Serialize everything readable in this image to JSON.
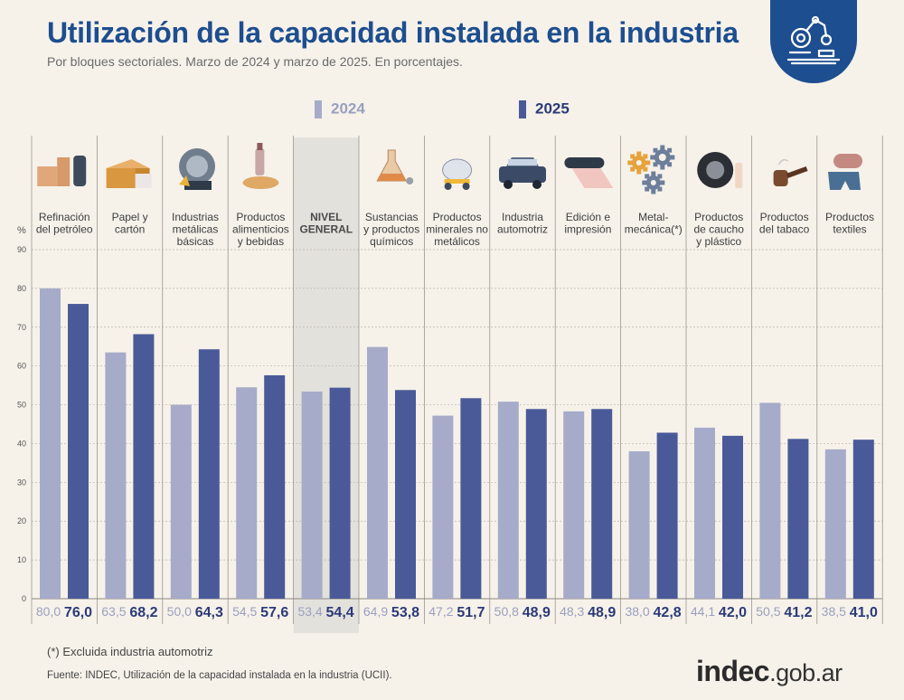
{
  "title": "Utilización de la capacidad instalada en la industria",
  "subtitle": "Por bloques sectoriales. Marzo de 2024 y marzo de 2025. En porcentajes.",
  "legend": [
    {
      "label": "2024",
      "color": "#a6abc9"
    },
    {
      "label": "2025",
      "color": "#4a5a98"
    }
  ],
  "colors": {
    "title": "#1d4e8f",
    "bar_2024": "#a6abc9",
    "bar_2025": "#4a5a98",
    "label_2024": "#9a9fbf",
    "label_2025": "#2b3a78",
    "highlight": "#e3e1dc",
    "logo": "#1d4e8f"
  },
  "chart_data": {
    "type": "bar",
    "y_unit_label": "%",
    "ylim": [
      0,
      90
    ],
    "y_ticks": [
      0,
      10,
      20,
      30,
      40,
      50,
      60,
      70,
      80,
      90
    ],
    "grid": true,
    "series_names": [
      "2024",
      "2025"
    ],
    "categories": [
      {
        "lines": [
          "Refinación",
          "del petróleo"
        ],
        "icon": "oil-refinery-icon",
        "v2024": 80.0,
        "v2025": 76.0,
        "l2024": "80,0",
        "l2025": "76,0",
        "highlight": false
      },
      {
        "lines": [
          "Papel y",
          "cartón"
        ],
        "icon": "cardboard-box-icon",
        "v2024": 63.5,
        "v2025": 68.2,
        "l2024": "63,5",
        "l2025": "68,2",
        "highlight": false
      },
      {
        "lines": [
          "Industrias",
          "metálicas",
          "básicas"
        ],
        "icon": "metal-cutting-icon",
        "v2024": 50.0,
        "v2025": 64.3,
        "l2024": "50,0",
        "l2025": "64,3",
        "highlight": false
      },
      {
        "lines": [
          "Productos",
          "alimenticios",
          "y bebidas"
        ],
        "icon": "food-beverage-icon",
        "v2024": 54.5,
        "v2025": 57.6,
        "l2024": "54,5",
        "l2025": "57,6",
        "highlight": false
      },
      {
        "lines": [
          "NIVEL",
          "GENERAL"
        ],
        "icon": "",
        "v2024": 53.4,
        "v2025": 54.4,
        "l2024": "53,4",
        "l2025": "54,4",
        "highlight": true
      },
      {
        "lines": [
          "Sustancias",
          "y productos",
          "químicos"
        ],
        "icon": "chemical-flask-icon",
        "v2024": 64.9,
        "v2025": 53.8,
        "l2024": "64,9",
        "l2025": "53,8",
        "highlight": false
      },
      {
        "lines": [
          "Productos",
          "minerales no",
          "metálicos"
        ],
        "icon": "cement-mixer-icon",
        "v2024": 47.2,
        "v2025": 51.7,
        "l2024": "47,2",
        "l2025": "51,7",
        "highlight": false
      },
      {
        "lines": [
          "Industria",
          "automotriz"
        ],
        "icon": "car-icon",
        "v2024": 50.8,
        "v2025": 48.9,
        "l2024": "50,8",
        "l2025": "48,9",
        "highlight": false
      },
      {
        "lines": [
          "Edición e",
          "impresión"
        ],
        "icon": "printing-roll-icon",
        "v2024": 48.3,
        "v2025": 48.9,
        "l2024": "48,3",
        "l2025": "48,9",
        "highlight": false
      },
      {
        "lines": [
          "Metal-",
          "mecánica(*)"
        ],
        "icon": "gears-icon",
        "v2024": 38.0,
        "v2025": 42.8,
        "l2024": "38,0",
        "l2025": "42,8",
        "highlight": false
      },
      {
        "lines": [
          "Productos",
          "de caucho",
          "y plástico"
        ],
        "icon": "tire-icon",
        "v2024": 44.1,
        "v2025": 42.0,
        "l2024": "44,1",
        "l2025": "42,0",
        "highlight": false
      },
      {
        "lines": [
          "Productos",
          "del tabaco"
        ],
        "icon": "tobacco-pipe-icon",
        "v2024": 50.5,
        "v2025": 41.2,
        "l2024": "50,5",
        "l2025": "41,2",
        "highlight": false
      },
      {
        "lines": [
          "Productos",
          "textiles"
        ],
        "icon": "textile-icon",
        "v2024": 38.5,
        "v2025": 41.0,
        "l2024": "38,5",
        "l2025": "41,0",
        "highlight": false
      }
    ]
  },
  "footnote": "(*) Excluida industria automotriz",
  "source": "Fuente: INDEC, Utilización de la capacidad instalada en la industria (UCII).",
  "brand": {
    "main": "indec",
    "tld": ".gob.ar"
  }
}
